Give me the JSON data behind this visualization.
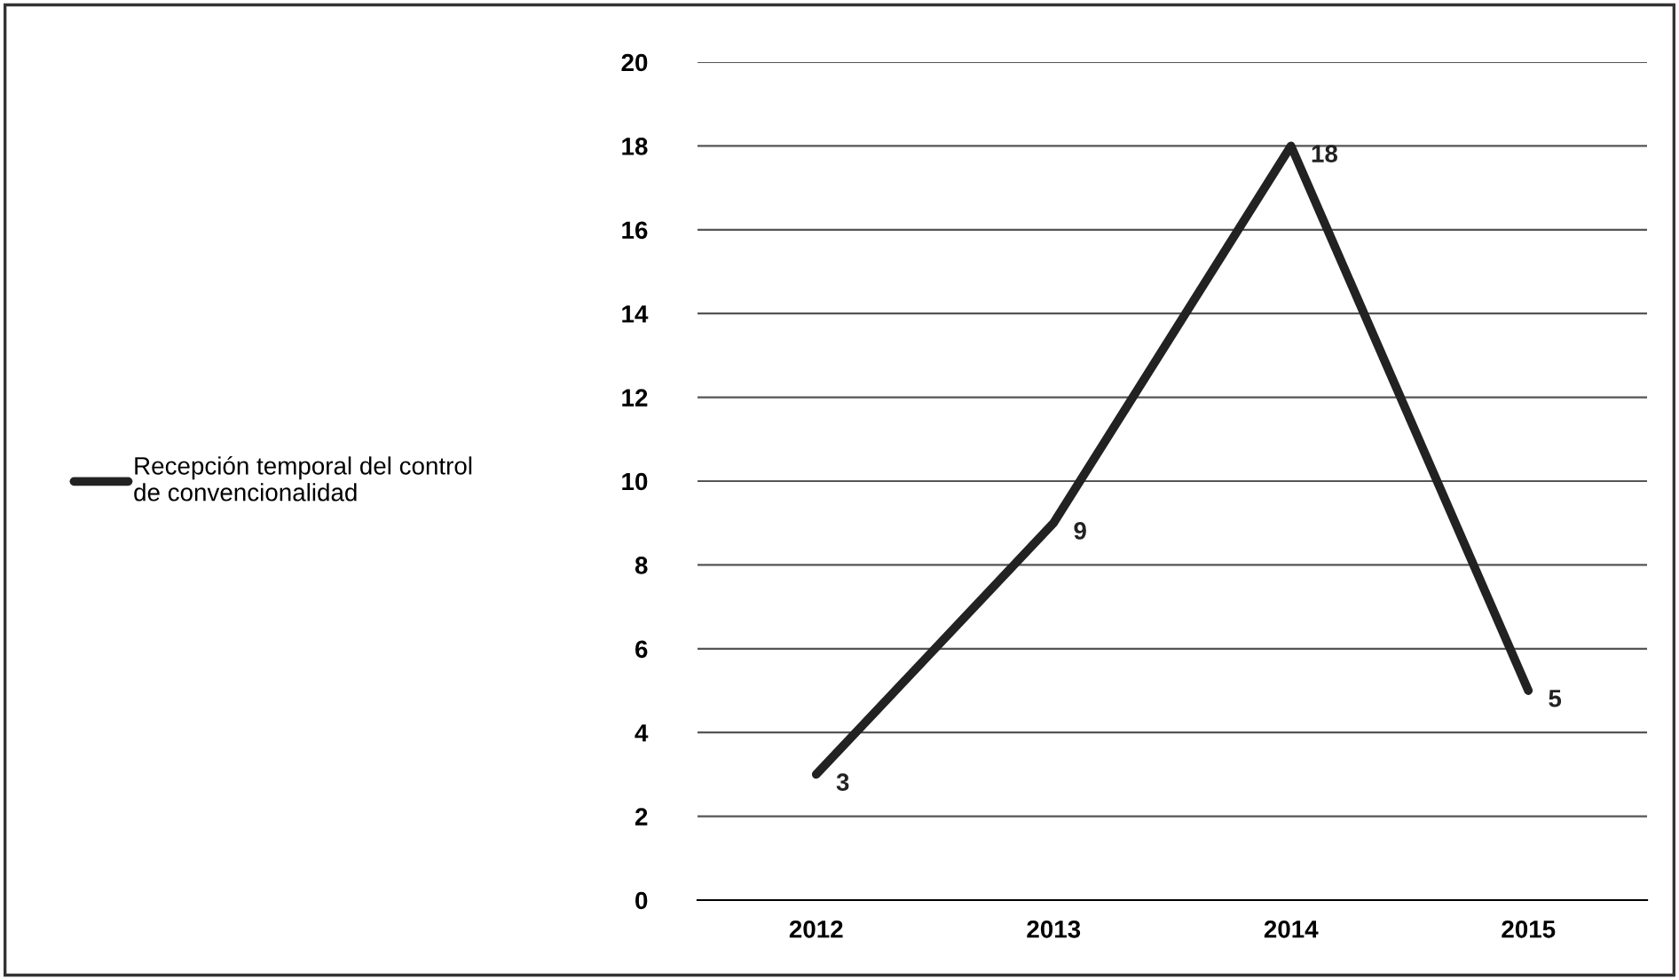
{
  "chart_data": {
    "type": "line",
    "categories": [
      "2012",
      "2013",
      "2014",
      "2015"
    ],
    "series": [
      {
        "name": "Recepción temporal del control\nde convencionalidad",
        "color": "#222222",
        "values": [
          3,
          9,
          18,
          5
        ]
      }
    ],
    "ylim": [
      0,
      20
    ],
    "yticks": [
      0,
      2,
      4,
      6,
      8,
      10,
      12,
      14,
      16,
      18,
      20
    ],
    "grid": "y",
    "legend": "left",
    "data_labels": true,
    "marker": "none",
    "line_style": "solid"
  }
}
